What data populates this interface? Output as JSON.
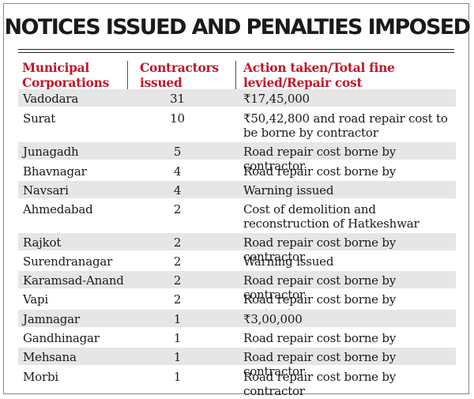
{
  "title": "NOTICES ISSUED AND PENALTIES IMPOSED",
  "colors": {
    "header_text": "#c0182a",
    "shaded_row": "#e6e6e6",
    "body_text": "#1a1a1a"
  },
  "columns": [
    "Municipal Corporations",
    "Contractors issued notices",
    "Action taken/Total fine levied/Repair cost"
  ],
  "rows": [
    {
      "corporation": "Vadodara",
      "notices": "31",
      "action": "₹17,45,000"
    },
    {
      "corporation": "Surat",
      "notices": "10",
      "action": "₹50,42,800 and road repair cost to be borne by contractor"
    },
    {
      "corporation": "Junagadh",
      "notices": "5",
      "action": "Road repair cost borne by contractor"
    },
    {
      "corporation": "Bhavnagar",
      "notices": "4",
      "action": "Road repair cost borne by contractor"
    },
    {
      "corporation": "Navsari",
      "notices": "4",
      "action": "Warning issued"
    },
    {
      "corporation": "Ahmedabad",
      "notices": "2",
      "action": "Cost of demolition and reconstruction of Hatkeshwar bridge"
    },
    {
      "corporation": "Rajkot",
      "notices": "2",
      "action": "Road repair cost borne by contractor"
    },
    {
      "corporation": "Surendranagar",
      "notices": "2",
      "action": "Warning issued"
    },
    {
      "corporation": "Karamsad-Anand",
      "notices": "2",
      "action": "Road repair cost borne by contractor"
    },
    {
      "corporation": "Vapi",
      "notices": "2",
      "action": "Road repair cost borne by contractor"
    },
    {
      "corporation": "Jamnagar",
      "notices": "1",
      "action": "₹3,00,000"
    },
    {
      "corporation": "Gandhinagar",
      "notices": "1",
      "action": "Road repair cost borne by contractor"
    },
    {
      "corporation": "Mehsana",
      "notices": "1",
      "action": "Road repair cost borne by contractor"
    },
    {
      "corporation": "Morbi",
      "notices": "1",
      "action": "Road repair cost borne by contractor"
    }
  ]
}
